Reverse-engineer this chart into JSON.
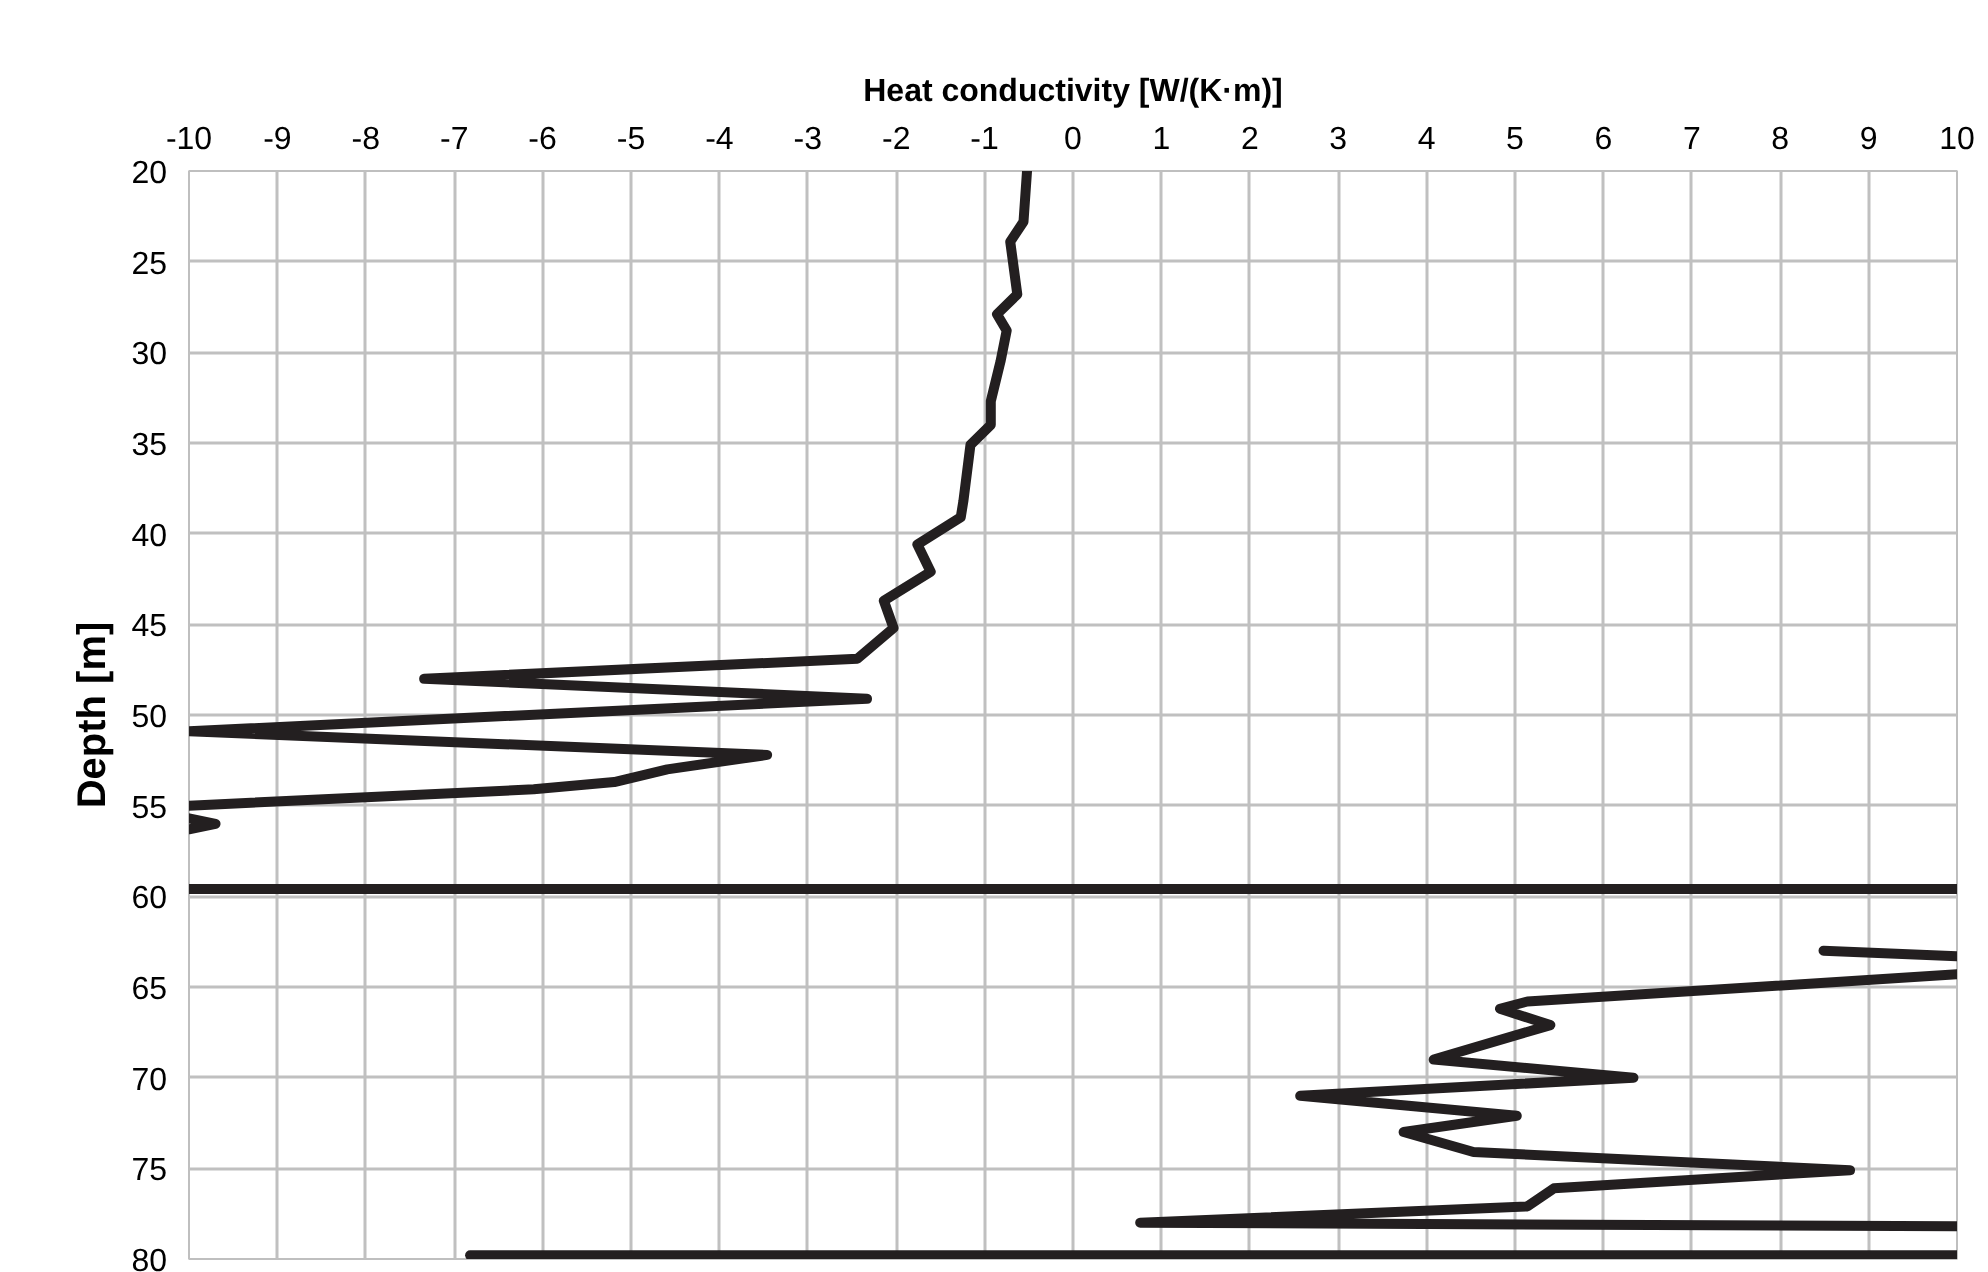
{
  "chart_data": {
    "type": "line",
    "xlabel": "Heat conductivity [W/(K·m)]",
    "ylabel": "Depth [m]",
    "xlim": [
      -10,
      10
    ],
    "xticks": [
      -10,
      -9,
      -8,
      -7,
      -6,
      -5,
      -4,
      -3,
      -2,
      -1,
      0,
      1,
      2,
      3,
      4,
      5,
      6,
      7,
      8,
      9,
      10
    ],
    "ylim": [
      80,
      20
    ],
    "yticks": [
      20,
      25,
      30,
      35,
      40,
      45,
      50,
      55,
      60,
      65,
      70,
      75,
      80
    ],
    "grid": true,
    "line_style": "solid",
    "series": [
      {
        "color": "#231f20",
        "x": [
          -0.52,
          -0.56,
          -0.71,
          -0.63,
          -0.86,
          -0.75,
          -0.82,
          -0.93,
          -0.93,
          -1.16,
          -1.24,
          -1.27,
          -1.76,
          -1.61,
          -2.14,
          -2.03,
          -2.44,
          -7.34,
          -2.33,
          -10,
          -3.46,
          -4.59,
          -5.19,
          -6.1,
          -10
        ],
        "values": [
          20,
          22.8,
          23.9,
          26.8,
          27.9,
          28.8,
          30.5,
          32.7,
          34,
          35.1,
          38.2,
          39.1,
          40.6,
          42.1,
          43.7,
          45.2,
          46.9,
          48.0,
          49.1,
          50.9,
          52.2,
          53.0,
          53.7,
          54.1,
          55.0
        ]
      },
      {
        "color": "#231f20",
        "x": [
          -10,
          -9.7,
          -10
        ],
        "values": [
          55.7,
          56.0,
          56.3
        ]
      },
      {
        "color": "#231f20",
        "x": [
          -10,
          10
        ],
        "values": [
          59.6,
          59.6
        ]
      },
      {
        "color": "#231f20",
        "x": [
          8.49,
          10
        ],
        "values": [
          63.0,
          63.3
        ]
      },
      {
        "color": "#231f20",
        "x": [
          10,
          5.14,
          4.83,
          5.4,
          4.08,
          6.34,
          2.57,
          5.02,
          3.74,
          4.53,
          8.79,
          5.44,
          5.14,
          0.76,
          10
        ],
        "values": [
          64.3,
          65.8,
          66.2,
          67.1,
          69.0,
          70.0,
          71.0,
          72.1,
          73.0,
          74.1,
          75.1,
          76.1,
          77.1,
          78.0,
          78.2
        ]
      },
      {
        "color": "#231f20",
        "x": [
          -6.82,
          10
        ],
        "values": [
          79.8,
          79.8
        ]
      }
    ]
  }
}
